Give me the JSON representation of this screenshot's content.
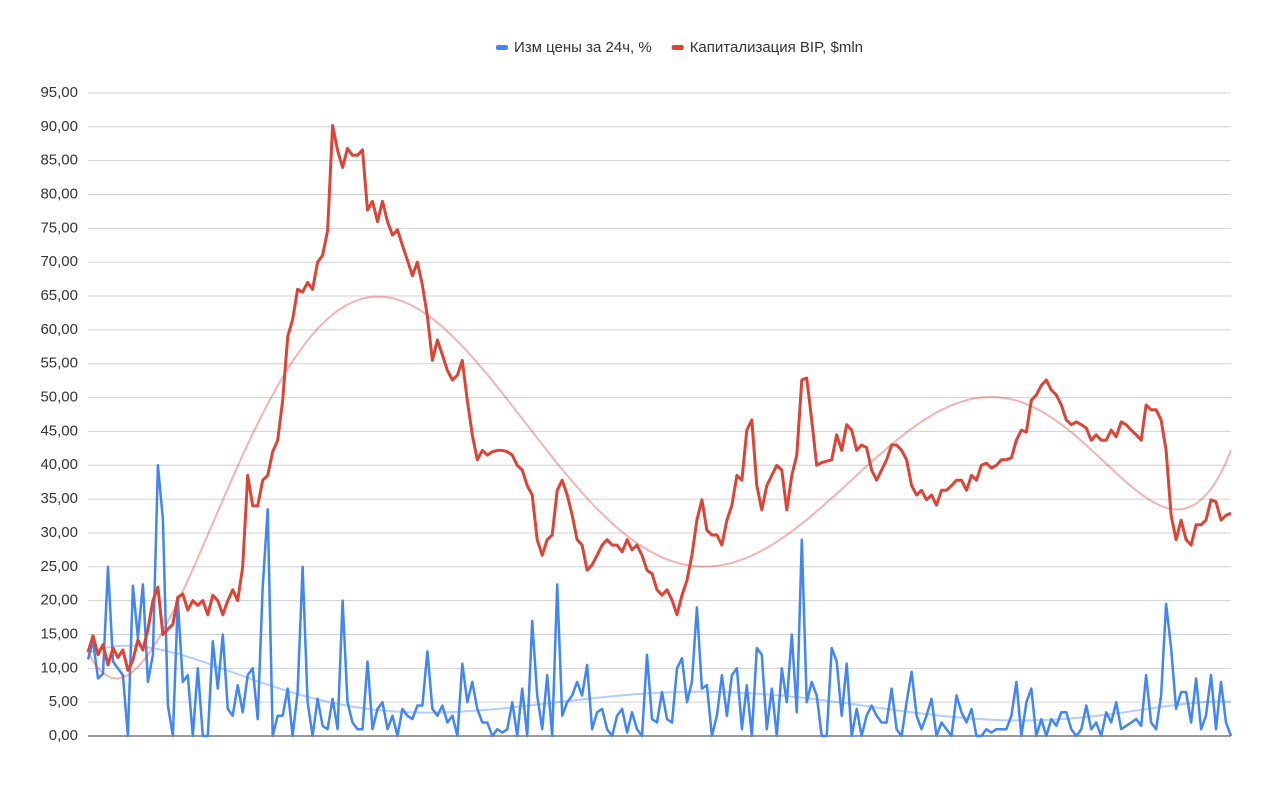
{
  "chart_data": {
    "type": "line",
    "legend": "top",
    "grid": true,
    "trendline": "polynomial",
    "ylim": [
      0,
      95
    ],
    "yticks": [
      {
        "value": 0,
        "label": "0,00"
      },
      {
        "value": 5,
        "label": "5,00"
      },
      {
        "value": 10,
        "label": "10,00"
      },
      {
        "value": 15,
        "label": "15,00"
      },
      {
        "value": 20,
        "label": "20,00"
      },
      {
        "value": 25,
        "label": "25,00"
      },
      {
        "value": 30,
        "label": "30,00"
      },
      {
        "value": 35,
        "label": "35,00"
      },
      {
        "value": 40,
        "label": "40,00"
      },
      {
        "value": 45,
        "label": "45,00"
      },
      {
        "value": 50,
        "label": "50,00"
      },
      {
        "value": 55,
        "label": "55,00"
      },
      {
        "value": 60,
        "label": "60,00"
      },
      {
        "value": 65,
        "label": "65,00"
      },
      {
        "value": 70,
        "label": "70,00"
      },
      {
        "value": 75,
        "label": "75,00"
      },
      {
        "value": 80,
        "label": "80,00"
      },
      {
        "value": 85,
        "label": "85,00"
      },
      {
        "value": 90,
        "label": "90,00"
      },
      {
        "value": 95,
        "label": "95,00"
      }
    ],
    "series": [
      {
        "name": "Изм цены за 24ч, %",
        "color": "#4285f4",
        "values": [
          11.3,
          14,
          8.5,
          9.2,
          25,
          11,
          10,
          9,
          0,
          22.2,
          14.5,
          22.4,
          8,
          12,
          40,
          32,
          4.5,
          0,
          20,
          8,
          9,
          0,
          10,
          0,
          0,
          14,
          7,
          15,
          4,
          3,
          7.5,
          3.5,
          9,
          10,
          2.5,
          22,
          33.5,
          0,
          3,
          3,
          7,
          0,
          6.5,
          25,
          5,
          0,
          5.5,
          1.5,
          1,
          5.5,
          1,
          20,
          5,
          2,
          1,
          1,
          11,
          1,
          4,
          5,
          1,
          3,
          0,
          4,
          3,
          2.5,
          4.5,
          4.5,
          12.5,
          4,
          3,
          4.5,
          2,
          3,
          0,
          10.7,
          5,
          8,
          4,
          2,
          2,
          0,
          1,
          0.5,
          1,
          5,
          0,
          7,
          0,
          17,
          6,
          1,
          9,
          0,
          22.4,
          3,
          5,
          6,
          8,
          6,
          10.5,
          1,
          3.5,
          4,
          1,
          0,
          3,
          4,
          0.5,
          3.5,
          1,
          0,
          12,
          2.5,
          2,
          6.5,
          2.5,
          2,
          10,
          11.5,
          5,
          8,
          19,
          7,
          7.5,
          0,
          3,
          9,
          3,
          9,
          10,
          1,
          7.5,
          0,
          13,
          12,
          1,
          7,
          0,
          10,
          5,
          15,
          3.5,
          29,
          5,
          8,
          6,
          0,
          0,
          13,
          11,
          3,
          10.7,
          0,
          4,
          0,
          3,
          4.5,
          3,
          2,
          2,
          7,
          1,
          0,
          5,
          9.5,
          3,
          1,
          3,
          5.5,
          0,
          2,
          1,
          0,
          6,
          3.5,
          2,
          4,
          0,
          0,
          1,
          0.5,
          1,
          1,
          1,
          3,
          8,
          0,
          5,
          7,
          0,
          2.5,
          0,
          2.5,
          1.5,
          3.5,
          3.5,
          1,
          0,
          1,
          4.5,
          1,
          2,
          0,
          3.5,
          2,
          5,
          1,
          1.5,
          2,
          2.5,
          1.5,
          9,
          2,
          1,
          6,
          19.5,
          13,
          4,
          6.5,
          6.5,
          2,
          8.5,
          1,
          3,
          9,
          1,
          8,
          2,
          0
        ]
      },
      {
        "name": "Капитализация BIP, $mln",
        "color": "#db4437",
        "values": [
          12.4,
          14.8,
          12,
          13.5,
          10.5,
          13,
          11.6,
          12.7,
          9.7,
          11.2,
          14.2,
          12.7,
          15.7,
          20,
          22,
          15,
          15.8,
          16.5,
          20.5,
          21,
          18.6,
          20,
          19.3,
          20,
          17.9,
          20.8,
          20,
          17.9,
          20,
          21.6,
          20,
          25,
          38.5,
          34,
          34,
          37.8,
          38.5,
          42,
          43.7,
          49.6,
          59,
          61.5,
          66,
          65.6,
          67,
          66,
          70,
          71,
          74.7,
          90.2,
          86.5,
          84,
          86.8,
          85.8,
          85.8,
          86.6,
          77.7,
          79,
          76,
          79,
          76,
          74,
          74.8,
          72.5,
          70.3,
          68,
          70,
          66.6,
          62,
          55.5,
          58.5,
          56.3,
          54,
          52.6,
          53.3,
          55.5,
          49.6,
          44.5,
          40.8,
          42.2,
          41.5,
          42,
          42.2,
          42.2,
          42,
          41.5,
          40,
          39.3,
          37,
          35.6,
          29,
          26.7,
          29,
          29.7,
          36.3,
          37.8,
          35.6,
          32.6,
          29,
          28.2,
          24.5,
          25.3,
          26.7,
          28.2,
          29,
          28.2,
          28.2,
          27.2,
          29,
          27.5,
          28.2,
          26.7,
          24.5,
          24,
          21.6,
          20.8,
          21.6,
          20.1,
          17.9,
          20.8,
          23,
          26.7,
          31.9,
          34.9,
          30.4,
          29.7,
          29.7,
          28.2,
          31.9,
          34.1,
          38.5,
          37.8,
          45.2,
          46.7,
          37,
          33.4,
          37,
          38.5,
          40,
          39.3,
          33.4,
          38.5,
          41.5,
          52.6,
          52.9,
          46.7,
          40,
          40.4,
          40.6,
          40.8,
          44.5,
          42.2,
          46,
          45.2,
          42.2,
          43,
          42.6,
          39.3,
          37.8,
          39.3,
          40.8,
          43,
          43,
          42.2,
          40.8,
          37,
          35.6,
          36.3,
          34.9,
          35.6,
          34.1,
          36.3,
          36.3,
          37,
          37.8,
          37.8,
          36.3,
          38.5,
          37.8,
          40,
          40.3,
          39.6,
          40,
          40.8,
          40.8,
          41.1,
          43.7,
          45.2,
          44.9,
          49.6,
          50.4,
          51.8,
          52.6,
          51.1,
          50.4,
          48.9,
          46.7,
          46,
          46.4,
          46,
          45.5,
          43.7,
          44.5,
          43.7,
          43.7,
          45.2,
          44.2,
          46.4,
          46,
          45.2,
          44.5,
          43.7,
          48.9,
          48.2,
          48.2,
          46.7,
          42.2,
          32.6,
          29,
          31.9,
          29,
          28.2,
          31.2,
          31.2,
          31.9,
          34.9,
          34.6,
          31.9,
          32.6,
          32.9
        ]
      }
    ]
  }
}
